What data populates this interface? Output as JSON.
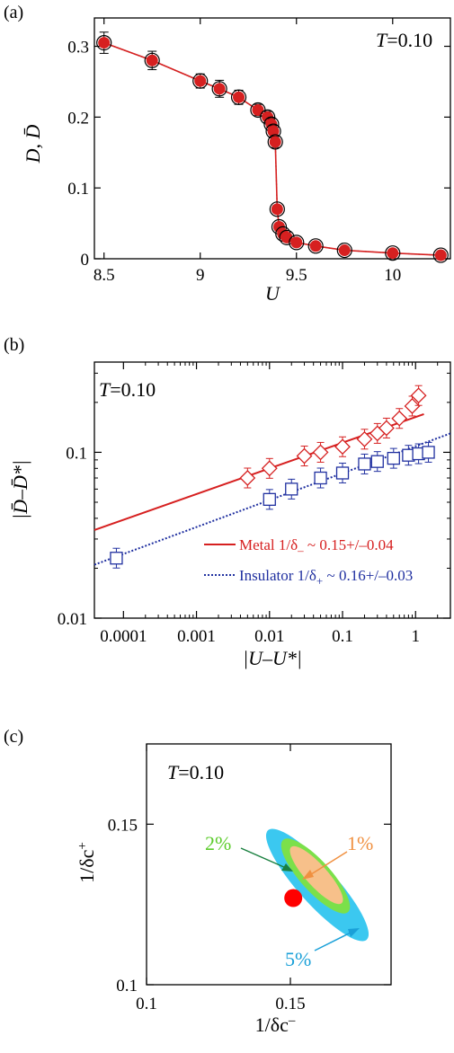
{
  "figure": {
    "panel_a_label": "(a)",
    "panel_b_label": "(b)",
    "panel_c_label": "(c)"
  },
  "chart_data": [
    {
      "type": "scatter",
      "panel": "(a)",
      "annotation_T": "T",
      "annotation_val": "=0.10",
      "xlabel": "U",
      "ylabel": "D, D̄",
      "xlim": [
        8.45,
        10.3
      ],
      "ylim": [
        0,
        0.34
      ],
      "xticks": [
        8.5,
        9,
        9.5,
        10
      ],
      "xtick_labels": [
        "8.5",
        "9",
        "9.5",
        "10"
      ],
      "yticks": [
        0,
        0.1,
        0.2,
        0.3
      ],
      "ytick_labels": [
        "0",
        "0.1",
        "0.2",
        "0.3"
      ],
      "colors": {
        "metal": "#d62020",
        "insulator": "#000000"
      },
      "series": [
        {
          "x": [
            8.5,
            8.75,
            9.0,
            9.1,
            9.2,
            9.3,
            9.35,
            9.37,
            9.38,
            9.39,
            9.4,
            9.41,
            9.43,
            9.45,
            9.5,
            9.6,
            9.75,
            10.0,
            10.25
          ],
          "y": [
            0.305,
            0.28,
            0.251,
            0.24,
            0.228,
            0.21,
            0.2,
            0.19,
            0.18,
            0.165,
            0.07,
            0.045,
            0.035,
            0.03,
            0.023,
            0.018,
            0.012,
            0.008,
            0.005
          ],
          "err": [
            0.015,
            0.013,
            0.01,
            0.012,
            0.01,
            0.008,
            0.008,
            0.008,
            0.008,
            0.008,
            0.005,
            0.005,
            0.004,
            0.004,
            0.003,
            0.003,
            0.003,
            0.003,
            0.003
          ]
        }
      ]
    },
    {
      "type": "scatter",
      "panel": "(b)",
      "annotation_T": "T",
      "annotation_val": "=0.10",
      "xlabel": "|U–U*|",
      "ylabel": "|D̄–D̄*|",
      "xscale": "log",
      "yscale": "log",
      "xlim": [
        4e-05,
        3
      ],
      "ylim": [
        0.01,
        0.35
      ],
      "xtick_labels": [
        "0.0001",
        "0.001",
        "0.01",
        "0.1",
        "1"
      ],
      "ytick_labels": [
        "0.01",
        "0.1"
      ],
      "series": [
        {
          "marker": "diamond",
          "color": "#d62020",
          "x": [
            0.005,
            0.01,
            0.03,
            0.05,
            0.1,
            0.2,
            0.3,
            0.4,
            0.6,
            0.9,
            1.1
          ],
          "y": [
            0.07,
            0.08,
            0.095,
            0.1,
            0.108,
            0.12,
            0.13,
            0.14,
            0.16,
            0.19,
            0.22
          ]
        },
        {
          "marker": "square",
          "color": "#2030a0",
          "x": [
            8e-05,
            0.01,
            0.02,
            0.05,
            0.1,
            0.2,
            0.3,
            0.5,
            0.8,
            1.1,
            1.5
          ],
          "y": [
            0.023,
            0.052,
            0.06,
            0.07,
            0.075,
            0.085,
            0.088,
            0.092,
            0.096,
            0.098,
            0.1
          ]
        }
      ],
      "fits": [
        {
          "style": "solid",
          "color": "#d62020",
          "x": [
            4e-05,
            1.3
          ],
          "y": [
            0.034,
            0.17
          ]
        },
        {
          "style": "dotted",
          "color": "#2030a0",
          "x": [
            4e-05,
            3
          ],
          "y": [
            0.021,
            0.13
          ]
        }
      ],
      "legend": [
        {
          "label": "Metal 1/δ",
          "sub": "–",
          "rest": " ~ 0.15+/–0.04",
          "color": "#d62020"
        },
        {
          "label": "Insulator 1/δ",
          "sub": "+",
          "rest": " ~ 0.16+/–0.03",
          "color": "#2030a0"
        }
      ]
    },
    {
      "type": "area",
      "panel": "(c)",
      "annotation_T": "T",
      "annotation_val": "=0.10",
      "xlabel": "1/δc",
      "xlabel_sup": "–",
      "ylabel": "1/δc",
      "ylabel_sup": "+",
      "xlim": [
        0.1,
        0.185
      ],
      "ylim": [
        0.1,
        0.175
      ],
      "xtick_labels": [
        "0.1",
        "0.15"
      ],
      "ytick_labels": [
        "0.1",
        "0.15"
      ],
      "center": [
        0.151,
        0.127
      ],
      "center_color": "#ff0000",
      "regions": [
        {
          "label": "5%",
          "color": "#3bc8f0"
        },
        {
          "label": "2%",
          "color": "#7be04a"
        },
        {
          "label": "1%",
          "color": "#f7c08a"
        }
      ],
      "label_colors": {
        "5%": "#1aa0d8",
        "2%": "#5ccc2c",
        "1%": "#f09040"
      }
    }
  ]
}
